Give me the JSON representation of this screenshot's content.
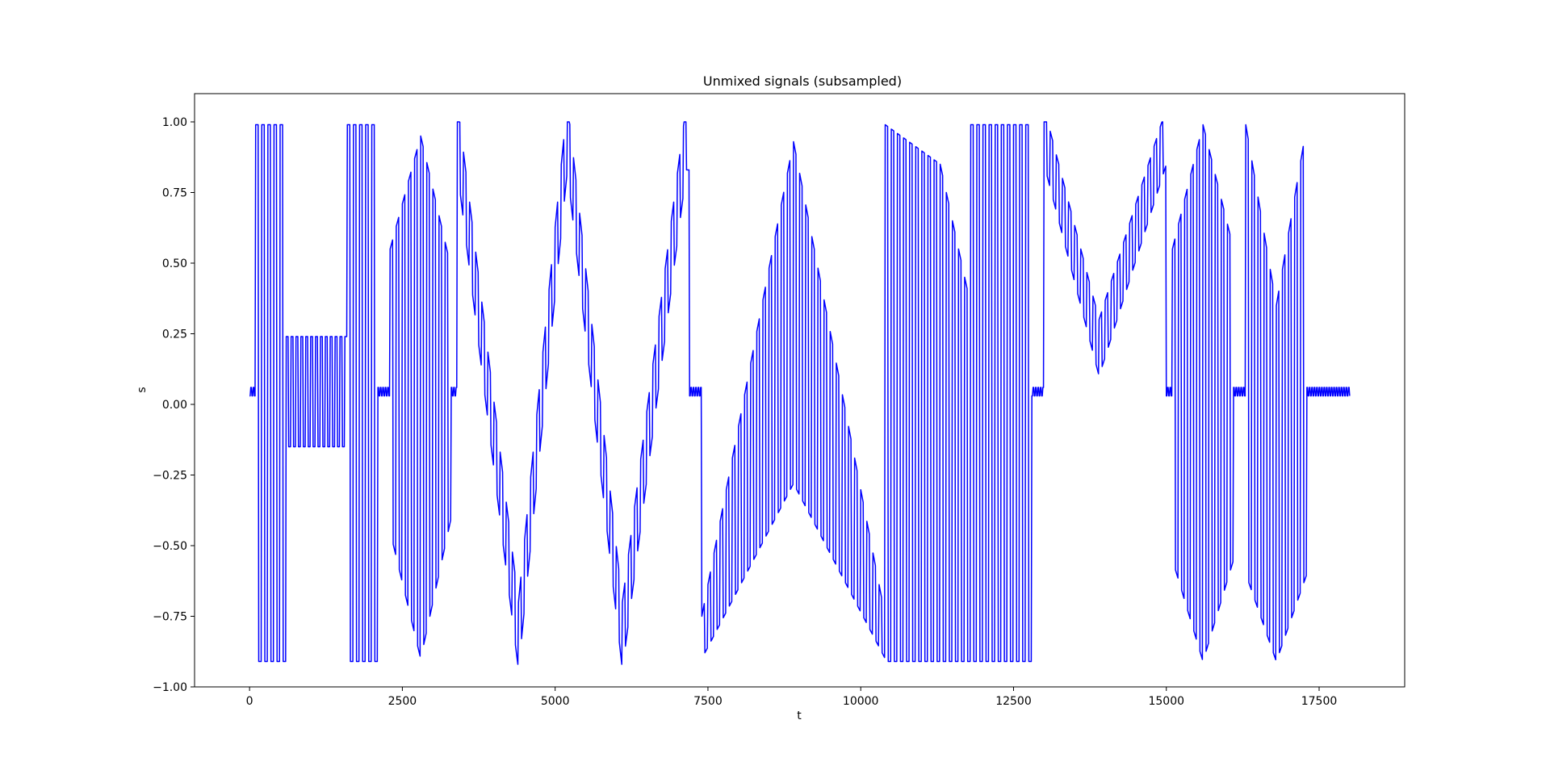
{
  "chart_data": {
    "type": "line",
    "title": "Unmixed signals (subsampled)",
    "xlabel": "t",
    "ylabel": "s",
    "xlim": [
      -900,
      18900
    ],
    "ylim": [
      -1.0,
      1.1
    ],
    "xticks": [
      0,
      2500,
      5000,
      7500,
      10000,
      12500,
      15000,
      17500
    ],
    "xtick_labels": [
      "0",
      "2500",
      "5000",
      "7500",
      "10000",
      "12500",
      "15000",
      "17500"
    ],
    "yticks": [
      1.0,
      0.75,
      0.5,
      0.25,
      0.0,
      -0.25,
      -0.5,
      -0.75,
      -1.0
    ],
    "ytick_labels": [
      "1.00",
      "0.75",
      "0.50",
      "0.25",
      "0.00",
      "−0.25",
      "−0.50",
      "−0.75",
      "−1.00"
    ],
    "grid": false,
    "legend": "none",
    "series_color": "#0000ff",
    "x_range": [
      0,
      18000
    ],
    "segments": [
      {
        "t0": 0,
        "t1": 100,
        "kind": "flat"
      },
      {
        "t0": 100,
        "t1": 600,
        "kind": "square",
        "high": 0.99,
        "low": -0.91,
        "period": 100
      },
      {
        "t0": 600,
        "t1": 1600,
        "kind": "osc",
        "high": 0.24,
        "low": -0.15,
        "period": 80
      },
      {
        "t0": 1600,
        "t1": 2100,
        "kind": "square",
        "high": 0.99,
        "low": -0.91,
        "period": 100
      },
      {
        "t0": 2100,
        "t1": 2300,
        "kind": "flat"
      },
      {
        "t0": 2300,
        "t1": 3300,
        "kind": "sine_env",
        "period": 100,
        "env": [
          [
            2300,
            0.55,
            -0.45
          ],
          [
            2800,
            0.95,
            -0.9
          ],
          [
            3300,
            0.48,
            -0.4
          ]
        ]
      },
      {
        "t0": 3300,
        "t1": 3400,
        "kind": "flat"
      },
      {
        "t0": 3400,
        "t1": 7200,
        "kind": "center_osc",
        "period": 100,
        "amp": 0.12,
        "center": [
          [
            3400,
            0.95
          ],
          [
            4400,
            -0.82
          ],
          [
            5200,
            0.95
          ],
          [
            6100,
            -0.82
          ],
          [
            7150,
            0.95
          ]
        ]
      },
      {
        "t0": 7200,
        "t1": 7400,
        "kind": "flat"
      },
      {
        "t0": 7400,
        "t1": 10400,
        "kind": "band_osc",
        "period": 100,
        "env": [
          [
            7400,
            -0.75,
            -0.9
          ],
          [
            8900,
            0.93,
            -0.28
          ],
          [
            10400,
            -0.75,
            -0.9
          ]
        ]
      },
      {
        "t0": 10400,
        "t1": 12800,
        "kind": "band_osc",
        "period": 100,
        "env": [
          [
            10400,
            0.99,
            -0.91
          ],
          [
            11300,
            0.85,
            -0.91
          ],
          [
            11800,
            0.35,
            -0.91
          ]
        ]
      },
      {
        "t0": 11800,
        "t1": 12800,
        "kind": "square",
        "high": 0.99,
        "low": -0.91,
        "period": 100
      },
      {
        "t0": 12800,
        "t1": 13000,
        "kind": "flat"
      },
      {
        "t0": 13000,
        "t1": 15000,
        "kind": "center_osc",
        "period": 100,
        "amp": 0.1,
        "center": [
          [
            13000,
            0.95
          ],
          [
            13900,
            0.2
          ],
          [
            15000,
            0.95
          ]
        ]
      },
      {
        "t0": 15000,
        "t1": 15100,
        "kind": "flat"
      },
      {
        "t0": 15100,
        "t1": 16100,
        "kind": "sine_env",
        "period": 100,
        "env": [
          [
            15100,
            0.55,
            -0.55
          ],
          [
            15600,
            0.99,
            -0.91
          ],
          [
            16100,
            0.55,
            -0.55
          ]
        ]
      },
      {
        "t0": 16100,
        "t1": 16300,
        "kind": "flat"
      },
      {
        "t0": 16300,
        "t1": 17300,
        "kind": "sine_env",
        "period": 100,
        "env": [
          [
            16300,
            0.99,
            -0.6
          ],
          [
            16800,
            0.35,
            -0.91
          ],
          [
            17300,
            0.99,
            -0.6
          ]
        ]
      },
      {
        "t0": 17300,
        "t1": 18000,
        "kind": "flat"
      }
    ],
    "flat_band": [
      0.03,
      0.06
    ]
  }
}
